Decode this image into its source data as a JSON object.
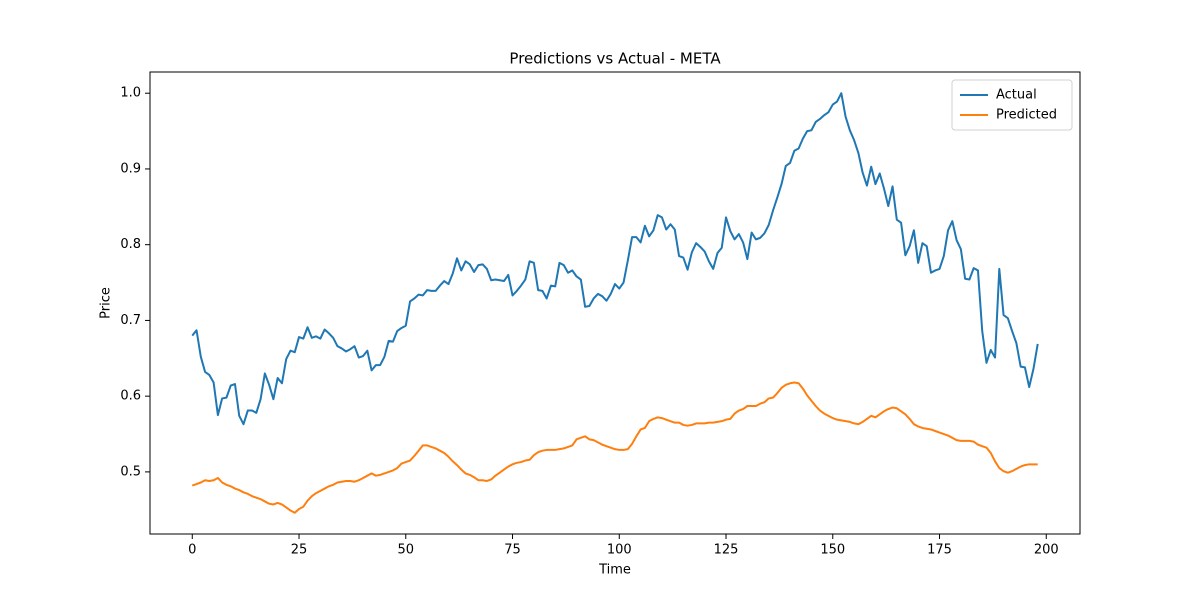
{
  "chart_data": {
    "type": "line",
    "title": "Predictions vs Actual - META",
    "xlabel": "Time",
    "ylabel": "Price",
    "x": [
      0,
      1,
      2,
      3,
      4,
      5,
      6,
      7,
      8,
      9,
      10,
      11,
      12,
      13,
      14,
      15,
      16,
      17,
      18,
      19,
      20,
      21,
      22,
      23,
      24,
      25,
      26,
      27,
      28,
      29,
      30,
      31,
      32,
      33,
      34,
      35,
      36,
      37,
      38,
      39,
      40,
      41,
      42,
      43,
      44,
      45,
      46,
      47,
      48,
      49,
      50,
      51,
      52,
      53,
      54,
      55,
      56,
      57,
      58,
      59,
      60,
      61,
      62,
      63,
      64,
      65,
      66,
      67,
      68,
      69,
      70,
      71,
      72,
      73,
      74,
      75,
      76,
      77,
      78,
      79,
      80,
      81,
      82,
      83,
      84,
      85,
      86,
      87,
      88,
      89,
      90,
      91,
      92,
      93,
      94,
      95,
      96,
      97,
      98,
      99,
      100,
      101,
      102,
      103,
      104,
      105,
      106,
      107,
      108,
      109,
      110,
      111,
      112,
      113,
      114,
      115,
      116,
      117,
      118,
      119,
      120,
      121,
      122,
      123,
      124,
      125,
      126,
      127,
      128,
      129,
      130,
      131,
      132,
      133,
      134,
      135,
      136,
      137,
      138,
      139,
      140,
      141,
      142,
      143,
      144,
      145,
      146,
      147,
      148,
      149,
      150,
      151,
      152,
      153,
      154,
      155,
      156,
      157,
      158,
      159,
      160,
      161,
      162,
      163,
      164,
      165,
      166,
      167,
      168,
      169,
      170,
      171,
      172,
      173,
      174,
      175,
      176,
      177,
      178,
      179,
      180,
      181,
      182,
      183,
      184,
      185,
      186,
      187,
      188,
      189,
      190,
      191,
      192,
      193,
      194,
      195,
      196,
      197,
      198
    ],
    "series": [
      {
        "name": "Actual",
        "color": "#1f77b4",
        "values": [
          0.68,
          0.687,
          0.652,
          0.632,
          0.628,
          0.618,
          0.575,
          0.597,
          0.598,
          0.614,
          0.616,
          0.574,
          0.563,
          0.581,
          0.581,
          0.578,
          0.596,
          0.63,
          0.615,
          0.596,
          0.624,
          0.617,
          0.649,
          0.66,
          0.658,
          0.678,
          0.676,
          0.691,
          0.677,
          0.679,
          0.676,
          0.688,
          0.683,
          0.677,
          0.666,
          0.663,
          0.659,
          0.662,
          0.666,
          0.651,
          0.653,
          0.66,
          0.634,
          0.641,
          0.641,
          0.652,
          0.673,
          0.672,
          0.686,
          0.69,
          0.693,
          0.725,
          0.729,
          0.734,
          0.733,
          0.74,
          0.739,
          0.739,
          0.746,
          0.752,
          0.748,
          0.762,
          0.782,
          0.766,
          0.778,
          0.774,
          0.764,
          0.773,
          0.774,
          0.768,
          0.753,
          0.754,
          0.753,
          0.752,
          0.76,
          0.733,
          0.739,
          0.746,
          0.754,
          0.778,
          0.776,
          0.74,
          0.739,
          0.729,
          0.746,
          0.745,
          0.776,
          0.773,
          0.763,
          0.766,
          0.758,
          0.754,
          0.718,
          0.719,
          0.729,
          0.735,
          0.732,
          0.726,
          0.735,
          0.748,
          0.742,
          0.75,
          0.779,
          0.81,
          0.81,
          0.803,
          0.825,
          0.811,
          0.819,
          0.839,
          0.836,
          0.82,
          0.827,
          0.82,
          0.785,
          0.783,
          0.767,
          0.79,
          0.802,
          0.797,
          0.791,
          0.778,
          0.768,
          0.789,
          0.796,
          0.836,
          0.818,
          0.807,
          0.814,
          0.803,
          0.781,
          0.816,
          0.807,
          0.809,
          0.815,
          0.826,
          0.845,
          0.862,
          0.88,
          0.904,
          0.908,
          0.924,
          0.927,
          0.94,
          0.95,
          0.951,
          0.962,
          0.966,
          0.971,
          0.975,
          0.985,
          0.989,
          1.0,
          0.969,
          0.951,
          0.938,
          0.921,
          0.895,
          0.878,
          0.903,
          0.88,
          0.894,
          0.874,
          0.851,
          0.877,
          0.833,
          0.829,
          0.786,
          0.798,
          0.819,
          0.776,
          0.802,
          0.798,
          0.763,
          0.766,
          0.768,
          0.785,
          0.819,
          0.831,
          0.806,
          0.794,
          0.755,
          0.754,
          0.769,
          0.766,
          0.686,
          0.644,
          0.661,
          0.651,
          0.768,
          0.707,
          0.703,
          0.686,
          0.67,
          0.639,
          0.638,
          0.612,
          0.636,
          0.669
        ]
      },
      {
        "name": "Predicted",
        "color": "#ff7f0e",
        "values": [
          0.482,
          0.484,
          0.486,
          0.489,
          0.488,
          0.489,
          0.492,
          0.486,
          0.483,
          0.481,
          0.478,
          0.476,
          0.473,
          0.471,
          0.468,
          0.466,
          0.464,
          0.461,
          0.458,
          0.457,
          0.459,
          0.457,
          0.453,
          0.449,
          0.446,
          0.451,
          0.454,
          0.462,
          0.468,
          0.472,
          0.475,
          0.478,
          0.481,
          0.483,
          0.486,
          0.487,
          0.488,
          0.488,
          0.487,
          0.489,
          0.492,
          0.495,
          0.498,
          0.495,
          0.496,
          0.498,
          0.5,
          0.502,
          0.505,
          0.511,
          0.513,
          0.515,
          0.521,
          0.528,
          0.535,
          0.535,
          0.533,
          0.531,
          0.528,
          0.525,
          0.52,
          0.514,
          0.509,
          0.503,
          0.498,
          0.496,
          0.493,
          0.489,
          0.489,
          0.488,
          0.49,
          0.495,
          0.499,
          0.503,
          0.507,
          0.51,
          0.512,
          0.513,
          0.515,
          0.516,
          0.522,
          0.526,
          0.528,
          0.529,
          0.529,
          0.529,
          0.53,
          0.531,
          0.533,
          0.535,
          0.543,
          0.545,
          0.547,
          0.543,
          0.542,
          0.539,
          0.536,
          0.534,
          0.532,
          0.53,
          0.529,
          0.529,
          0.53,
          0.537,
          0.547,
          0.556,
          0.558,
          0.567,
          0.57,
          0.572,
          0.571,
          0.569,
          0.567,
          0.565,
          0.565,
          0.562,
          0.561,
          0.562,
          0.564,
          0.564,
          0.564,
          0.565,
          0.565,
          0.566,
          0.567,
          0.569,
          0.57,
          0.577,
          0.581,
          0.583,
          0.587,
          0.587,
          0.587,
          0.59,
          0.592,
          0.597,
          0.598,
          0.604,
          0.611,
          0.615,
          0.617,
          0.618,
          0.617,
          0.61,
          0.601,
          0.594,
          0.587,
          0.581,
          0.577,
          0.574,
          0.571,
          0.569,
          0.568,
          0.567,
          0.566,
          0.564,
          0.563,
          0.566,
          0.57,
          0.574,
          0.572,
          0.576,
          0.58,
          0.583,
          0.585,
          0.584,
          0.58,
          0.576,
          0.57,
          0.563,
          0.56,
          0.558,
          0.557,
          0.556,
          0.554,
          0.552,
          0.55,
          0.548,
          0.545,
          0.542,
          0.541,
          0.541,
          0.541,
          0.54,
          0.536,
          0.534,
          0.532,
          0.525,
          0.514,
          0.505,
          0.501,
          0.499,
          0.501,
          0.504,
          0.507,
          0.509,
          0.51,
          0.51,
          0.51
        ]
      }
    ],
    "xlim": [
      -9.9,
      207.9
    ],
    "ylim": [
      0.418,
      1.028
    ],
    "xticks": [
      0,
      25,
      50,
      75,
      100,
      125,
      150,
      175,
      200
    ],
    "yticks": [
      {
        "value": 0.5,
        "label": "0.5"
      },
      {
        "value": 0.6,
        "label": "0.6"
      },
      {
        "value": 0.7,
        "label": "0.7"
      },
      {
        "value": 0.8,
        "label": "0.8"
      },
      {
        "value": 0.9,
        "label": "0.9"
      },
      {
        "value": 1,
        "label": "1.0"
      }
    ],
    "legend": "upper right",
    "grid": false
  }
}
